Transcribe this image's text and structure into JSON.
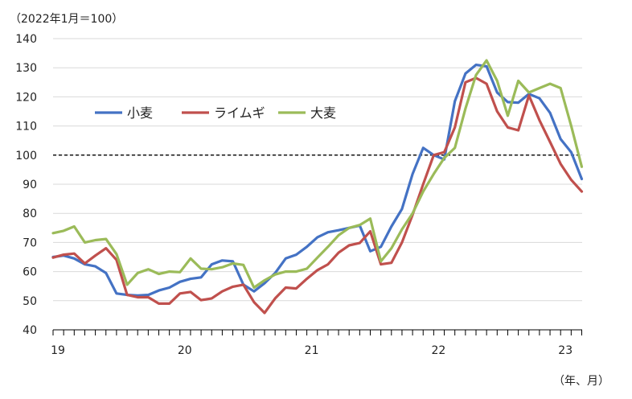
{
  "chart_data": {
    "type": "line",
    "unit_note": "（2022年1月＝100）",
    "period_note": "（年、月）",
    "x_tick_labels": [
      "19",
      "20",
      "21",
      "22",
      "23"
    ],
    "x_start": "2019-01",
    "ylim": [
      40,
      140
    ],
    "y_ticks": [
      40,
      50,
      60,
      70,
      80,
      90,
      100,
      110,
      120,
      130,
      140
    ],
    "reference_line": 100,
    "legend_position": "top-left",
    "series": [
      {
        "name": "小麦",
        "color": "#4472c4",
        "values": [
          65.0,
          65.5,
          64.5,
          62.5,
          61.8,
          59.5,
          52.5,
          52.0,
          51.8,
          52.0,
          53.5,
          54.5,
          56.5,
          57.5,
          58.0,
          62.5,
          63.8,
          63.5,
          55.5,
          53.2,
          56.0,
          59.5,
          64.5,
          65.8,
          68.5,
          71.8,
          73.5,
          74.2,
          75.0,
          75.8,
          67.0,
          68.5,
          75.5,
          81.5,
          93.5,
          102.5,
          100.0,
          98.5,
          118.5,
          128.0,
          131.0,
          130.5,
          121.5,
          118.2,
          118.0,
          121.0,
          119.5,
          114.5,
          105.5,
          101.0,
          91.8
        ]
      },
      {
        "name": "ライムギ",
        "color": "#c0504d",
        "values": [
          64.8,
          65.8,
          66.2,
          62.8,
          65.5,
          68.0,
          64.0,
          52.0,
          51.2,
          51.2,
          49.0,
          49.0,
          52.5,
          53.0,
          50.2,
          50.8,
          53.2,
          54.8,
          55.5,
          49.5,
          45.8,
          50.8,
          54.5,
          54.2,
          57.5,
          60.5,
          62.5,
          66.5,
          69.0,
          69.8,
          73.8,
          62.5,
          63.0,
          70.0,
          79.5,
          90.0,
          100.0,
          101.0,
          109.5,
          125.0,
          126.5,
          124.5,
          115.0,
          109.5,
          108.5,
          120.5,
          112.0,
          104.5,
          97.0,
          91.5,
          87.5
        ]
      },
      {
        "name": "大麦",
        "color": "#9bbb59",
        "values": [
          73.2,
          74.0,
          75.5,
          70.0,
          70.8,
          71.2,
          66.0,
          55.5,
          59.5,
          60.8,
          59.2,
          60.0,
          59.8,
          64.5,
          61.0,
          60.8,
          61.5,
          62.8,
          62.3,
          54.5,
          57.0,
          59.0,
          60.0,
          60.0,
          61.0,
          64.8,
          68.5,
          72.5,
          75.0,
          76.0,
          78.2,
          63.5,
          68.0,
          74.5,
          80.0,
          87.5,
          93.5,
          99.0,
          102.5,
          116.0,
          127.5,
          132.5,
          125.5,
          113.5,
          125.5,
          121.5,
          123.0,
          124.5,
          123.0,
          110.0,
          96.0
        ]
      }
    ]
  }
}
